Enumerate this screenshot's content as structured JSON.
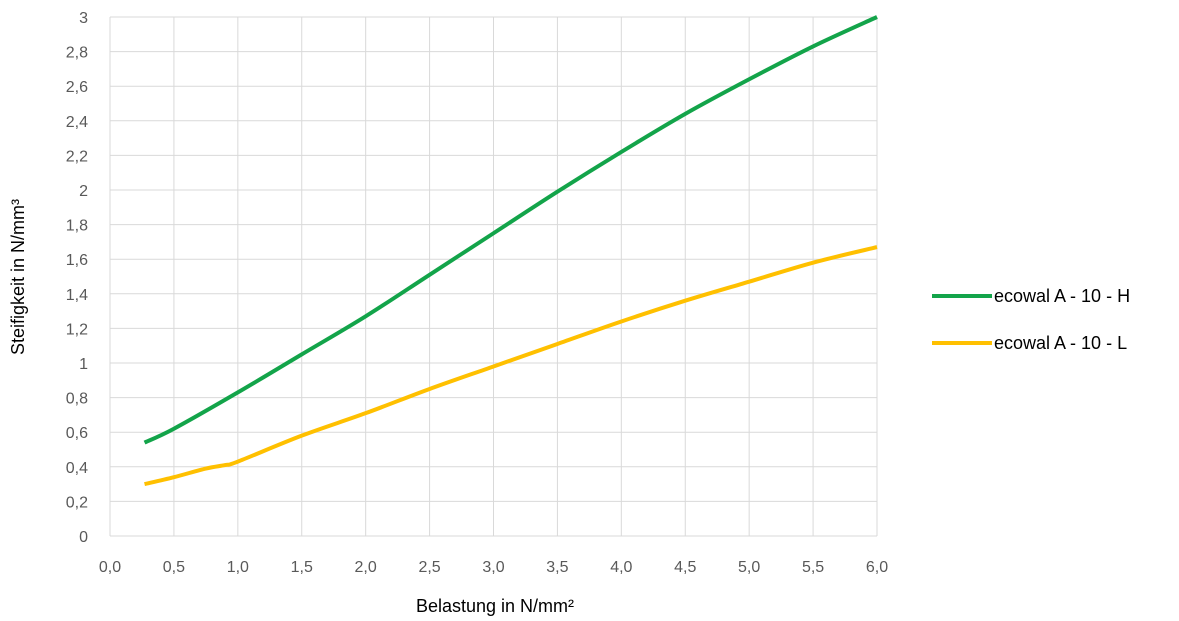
{
  "chart_data": {
    "type": "line",
    "xlabel": "Belastung in N/mm²",
    "ylabel": "Steifigkeit in N/mm³",
    "xlim": [
      0,
      6
    ],
    "ylim": [
      0,
      3
    ],
    "x_ticks": [
      "0,0",
      "0,5",
      "1,0",
      "1,5",
      "2,0",
      "2,5",
      "3,0",
      "3,5",
      "4,0",
      "4,5",
      "5,0",
      "5,5",
      "6,0"
    ],
    "y_ticks": [
      "0",
      "0,2",
      "0,4",
      "0,6",
      "0,8",
      "1",
      "1,2",
      "1,4",
      "1,6",
      "1,8",
      "2",
      "2,2",
      "2,4",
      "2,6",
      "2,8",
      "3"
    ],
    "grid": true,
    "legend_position": "right",
    "series": [
      {
        "name": "ecowal A - 10 - H",
        "color": "#13A44A",
        "points": [
          [
            0.27,
            0.54
          ],
          [
            0.5,
            0.62
          ],
          [
            1.0,
            0.83
          ],
          [
            1.5,
            1.05
          ],
          [
            2.0,
            1.27
          ],
          [
            2.5,
            1.51
          ],
          [
            3.0,
            1.75
          ],
          [
            3.5,
            1.99
          ],
          [
            4.0,
            2.22
          ],
          [
            4.5,
            2.44
          ],
          [
            5.0,
            2.64
          ],
          [
            5.5,
            2.83
          ],
          [
            6.0,
            3.0
          ]
        ]
      },
      {
        "name": "ecowal A - 10 - L",
        "color": "#FFC000",
        "points": [
          [
            0.27,
            0.3
          ],
          [
            0.5,
            0.34
          ],
          [
            0.75,
            0.39
          ],
          [
            0.9,
            0.41
          ],
          [
            1.0,
            0.43
          ],
          [
            1.5,
            0.58
          ],
          [
            2.0,
            0.71
          ],
          [
            2.5,
            0.85
          ],
          [
            3.0,
            0.98
          ],
          [
            3.5,
            1.11
          ],
          [
            4.0,
            1.24
          ],
          [
            4.5,
            1.36
          ],
          [
            5.0,
            1.47
          ],
          [
            5.5,
            1.58
          ],
          [
            6.0,
            1.67
          ]
        ]
      }
    ]
  }
}
